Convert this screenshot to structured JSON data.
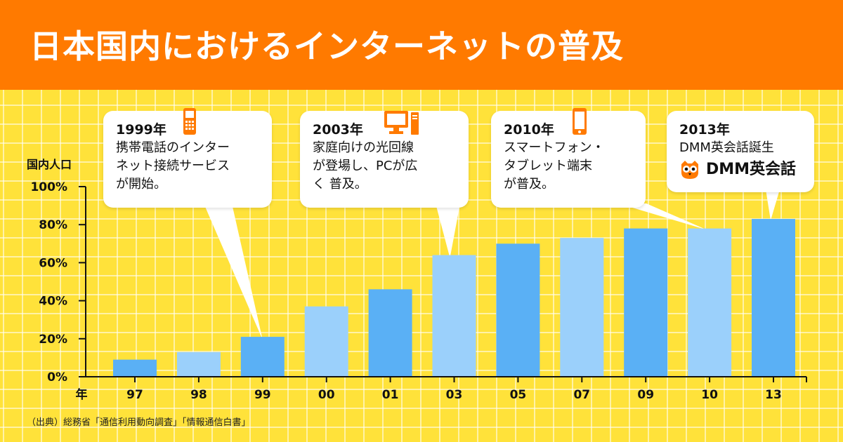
{
  "header": {
    "title": "日本国内におけるインターネットの普及"
  },
  "axis": {
    "ylabel": "国内人口",
    "x_unit_label": "年"
  },
  "colors": {
    "header": "#ff7a00",
    "bar_dark": "#5ab0f5",
    "bar_light": "#9bd0fb",
    "background": "#ffe23a"
  },
  "callouts": [
    {
      "year": "1999年",
      "text": "携帯電話のインター\nネット接続サービス\nが開始。",
      "icon": "feature-phone-icon"
    },
    {
      "year": "2003年",
      "text": "家庭向けの光回線\nが登場し、PCが広\nく 普及。",
      "icon": "desktop-pc-icon"
    },
    {
      "year": "2010年",
      "text": "スマートフォン・\nタブレット端末\nが普及。",
      "icon": "smartphone-icon"
    },
    {
      "year": "2013年",
      "text": "DMM英会話誕生",
      "logo_text": "DMM英会話",
      "icon": "dmm-owl-logo-icon"
    }
  ],
  "source": "（出典）総務省「通信利用動向調査」「情報通信白書」",
  "chart_data": {
    "type": "bar",
    "title": "日本国内におけるインターネットの普及",
    "ylabel": "国内人口",
    "xlabel": "年",
    "categories": [
      "97",
      "98",
      "99",
      "00",
      "01",
      "03",
      "05",
      "07",
      "09",
      "10",
      "13"
    ],
    "values": [
      9,
      13,
      21,
      37,
      46,
      64,
      70,
      73,
      78,
      78,
      83
    ],
    "shades": [
      "dark",
      "light",
      "dark",
      "light",
      "dark",
      "light",
      "dark",
      "light",
      "dark",
      "light",
      "dark"
    ],
    "ylim": [
      0,
      100
    ],
    "yticks": [
      "0%",
      "20%",
      "40%",
      "60%",
      "80%",
      "100%"
    ],
    "grid": true,
    "legend": "none"
  }
}
